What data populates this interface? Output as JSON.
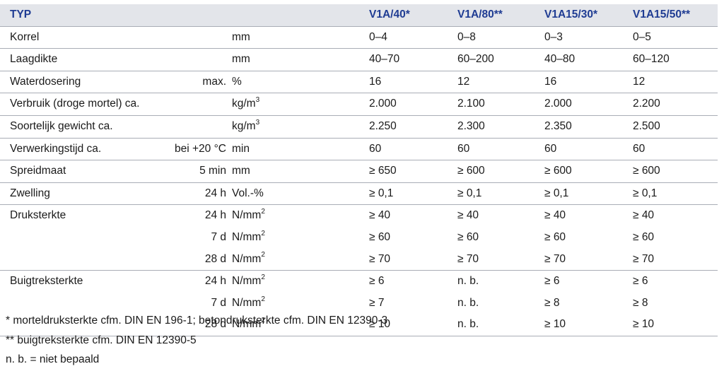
{
  "header": {
    "typ": "TYP",
    "columns": [
      "V1A/40*",
      "V1A/80**",
      "V1A15/30*",
      "V1A15/50**"
    ]
  },
  "rows": [
    {
      "property": "Korrel",
      "condition": "",
      "unit": "mm",
      "unit_sup": "",
      "values": [
        "0–4",
        "0–8",
        "0–3",
        "0–5"
      ]
    },
    {
      "property": "Laagdikte",
      "condition": "",
      "unit": "mm",
      "unit_sup": "",
      "values": [
        "40–70",
        "60–200",
        "40–80",
        "60–120"
      ]
    },
    {
      "property": "Waterdosering",
      "condition": "max.",
      "unit": "%",
      "unit_sup": "",
      "values": [
        "16",
        "12",
        "16",
        "12"
      ]
    },
    {
      "property": "Verbruik (droge mortel) ca.",
      "condition": "",
      "unit": "kg/m",
      "unit_sup": "3",
      "values": [
        "2.000",
        "2.100",
        "2.000",
        "2.200"
      ]
    },
    {
      "property": "Soortelijk gewicht ca.",
      "condition": "",
      "unit": "kg/m",
      "unit_sup": "3",
      "values": [
        "2.250",
        "2.300",
        "2.350",
        "2.500"
      ]
    },
    {
      "property": "Verwerkingstijd ca.",
      "condition": "bei +20 °C",
      "unit": "min",
      "unit_sup": "",
      "values": [
        "60",
        "60",
        "60",
        "60"
      ]
    },
    {
      "property": "Spreidmaat",
      "condition": "5 min",
      "unit": "mm",
      "unit_sup": "",
      "values": [
        "≥ 650",
        "≥ 600",
        "≥ 600",
        "≥ 600"
      ]
    },
    {
      "property": "Zwelling",
      "condition": "24 h",
      "unit": "Vol.-%",
      "unit_sup": "",
      "values": [
        "≥ 0,1",
        "≥ 0,1",
        "≥ 0,1",
        "≥ 0,1"
      ]
    },
    {
      "property": "Druksterkte",
      "condition": "24 h",
      "unit": "N/mm",
      "unit_sup": "2",
      "values": [
        "≥ 40",
        "≥ 40",
        "≥ 40",
        "≥ 40"
      ]
    },
    {
      "property": "",
      "condition": "7 d",
      "unit": "N/mm",
      "unit_sup": "2",
      "values": [
        "≥ 60",
        "≥ 60",
        "≥ 60",
        "≥ 60"
      ]
    },
    {
      "property": "",
      "condition": "28 d",
      "unit": "N/mm",
      "unit_sup": "2",
      "values": [
        "≥ 70",
        "≥ 70",
        "≥ 70",
        "≥ 70"
      ]
    },
    {
      "property": "Buigtreksterkte",
      "condition": "24 h",
      "unit": "N/mm",
      "unit_sup": "2",
      "values": [
        "≥ 6",
        "n. b.",
        "≥ 6",
        "≥ 6"
      ]
    },
    {
      "property": "",
      "condition": "7 d",
      "unit": "N/mm",
      "unit_sup": "2",
      "values": [
        "≥ 7",
        "n. b.",
        "≥ 8",
        "≥ 8"
      ]
    },
    {
      "property": "",
      "condition": "28 d",
      "unit": "N/mm",
      "unit_sup": "2",
      "values": [
        "≥ 10",
        "n. b.",
        "≥ 10",
        "≥ 10"
      ]
    }
  ],
  "notes": [
    "*  morteldruksterkte cfm. DIN EN 196-1; betondruksterkte cfm. DIN EN 12390-3",
    "** buigtreksterkte cfm. DIN EN 12390-5",
    "n. b. = niet bepaald"
  ],
  "colors": {
    "header_bg": "#e3e5ea",
    "header_text": "#1f3c93",
    "rule": "#a9adb6"
  }
}
